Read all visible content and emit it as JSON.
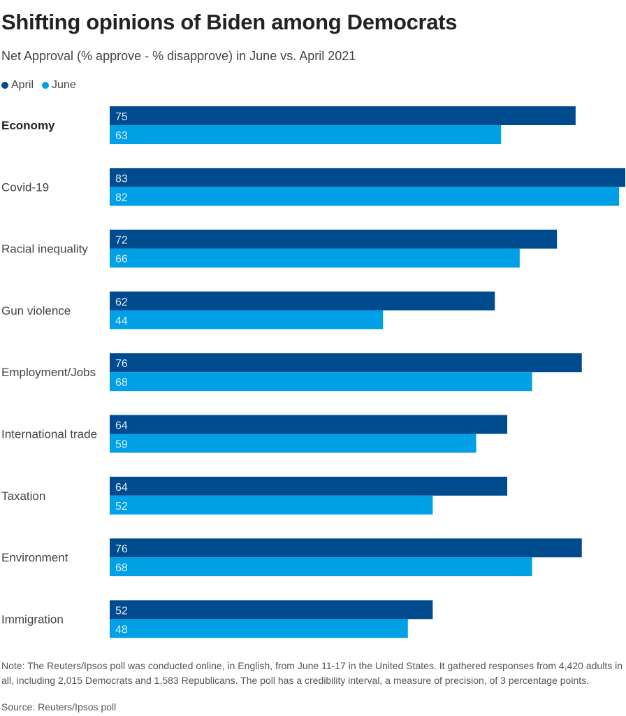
{
  "colors": {
    "april": "#004b8d",
    "june": "#00a0e6",
    "label": "#333333",
    "value_text": "#dcecf8"
  },
  "chart_data": {
    "type": "bar",
    "orientation": "horizontal",
    "title": "Shifting opinions of Biden among Democrats",
    "subtitle": "Net Approval (% approve - % disapprove) in June vs. April 2021",
    "xlabel": "",
    "ylabel": "",
    "xlim": [
      0,
      83
    ],
    "grid": false,
    "legend_position": "top-left",
    "categories": [
      "Economy",
      "Covid-19",
      "Racial inequality",
      "Gun violence",
      "Employment/Jobs",
      "International trade",
      "Taxation",
      "Environment",
      "Immigration"
    ],
    "highlighted_category": "Economy",
    "series": [
      {
        "name": "April",
        "values": [
          75,
          83,
          72,
          62,
          76,
          64,
          64,
          76,
          52
        ]
      },
      {
        "name": "June",
        "values": [
          63,
          82,
          66,
          44,
          68,
          59,
          52,
          68,
          48
        ]
      }
    ]
  },
  "legend": [
    {
      "label": "April",
      "color_key": "april"
    },
    {
      "label": "June",
      "color_key": "june"
    }
  ],
  "footer": {
    "note": "Note: The Reuters/Ipsos poll was conducted online, in English, from June 11-17 in the United States. It gathered responses from 4,420 adults in all, including 2,015 Democrats and 1,583 Republicans. The poll has a credibility interval, a measure of precision, of 3 percentage points.",
    "source": "Source: Reuters/Ipsos poll"
  }
}
